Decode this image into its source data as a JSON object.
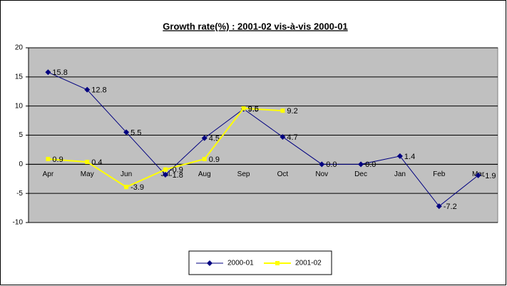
{
  "chart_data": {
    "type": "line",
    "title": "Growth rate(%) : 2001-02 vis-à-vis 2000-01",
    "categories": [
      "Apr",
      "May",
      "Jun",
      "Jul",
      "Aug",
      "Sep",
      "Oct",
      "Nov",
      "Dec",
      "Jan",
      "Feb",
      "Mar"
    ],
    "series": [
      {
        "name": "2000-01",
        "color": "#000080",
        "values": [
          15.8,
          12.8,
          5.5,
          -1.8,
          4.5,
          9.5,
          4.7,
          0,
          0,
          1.4,
          -7.2,
          -1.9
        ],
        "value_labels": [
          "15.8",
          "12.8",
          "5.5",
          "-1.8",
          "4.5",
          "9.5",
          "4.7",
          "0.0",
          "0.0",
          "1.4",
          "-7.2",
          "-1.9"
        ]
      },
      {
        "name": "2001-02",
        "color": "#ffff00",
        "values": [
          0.9,
          0.4,
          -3.9,
          -0.9,
          0.9,
          9.6,
          9.2,
          null,
          null,
          null,
          null,
          null
        ],
        "value_labels": [
          "0.9",
          "0.4",
          "-3.9",
          "-0.9",
          "0.9",
          "9.6",
          "9.2",
          null,
          null,
          null,
          null,
          null
        ]
      }
    ],
    "ylim": [
      -10,
      20
    ],
    "yticks": [
      -10,
      -5,
      0,
      5,
      10,
      15,
      20
    ],
    "grid": true,
    "legend": "bottom"
  }
}
